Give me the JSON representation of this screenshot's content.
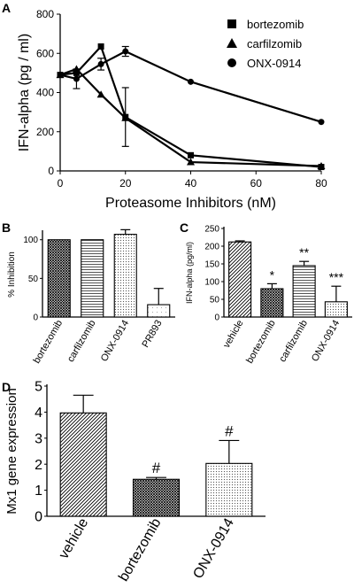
{
  "chart_data": [
    {
      "panel": "A",
      "type": "line",
      "xlabel": "Proteasome Inhibitors (nM)",
      "ylabel": "IFN-alpha (pg / ml)",
      "xlim": [
        0,
        80
      ],
      "ylim": [
        0,
        800
      ],
      "xticks": [
        "0",
        "20",
        "40",
        "60",
        "80"
      ],
      "yticks": [
        "0",
        "200",
        "400",
        "600",
        "800"
      ],
      "legend_position": "top-right",
      "series": [
        {
          "name": "bortezomib",
          "marker": "square",
          "x": [
            0,
            5,
            12.5,
            20,
            40,
            80
          ],
          "y": [
            490,
            500,
            635,
            275,
            80,
            20
          ],
          "err": [
            null,
            null,
            null,
            150,
            null,
            null
          ]
        },
        {
          "name": "carfilzomib",
          "marker": "triangle",
          "x": [
            0,
            5,
            12.5,
            20,
            40,
            80
          ],
          "y": [
            490,
            520,
            390,
            270,
            45,
            25
          ],
          "err": [
            null,
            null,
            null,
            null,
            null,
            null
          ]
        },
        {
          "name": "ONX-0914",
          "marker": "circle",
          "x": [
            0,
            5,
            12.5,
            20,
            40,
            80
          ],
          "y": [
            490,
            470,
            545,
            610,
            455,
            250
          ],
          "err": [
            null,
            50,
            30,
            25,
            null,
            null
          ]
        }
      ]
    },
    {
      "panel": "B",
      "type": "bar",
      "ylabel": "% Inhibition",
      "ylim": [
        0,
        110
      ],
      "yticks": [
        "0",
        "50",
        "100"
      ],
      "categories": [
        "bortezomib",
        "carfilzomib",
        "ONX-0914",
        "PR893"
      ],
      "values": [
        100,
        100,
        107,
        16
      ],
      "errors": [
        0,
        0,
        6,
        21
      ],
      "fills": [
        "crosshatch",
        "hlines",
        "dots",
        "sparse"
      ]
    },
    {
      "panel": "C",
      "type": "bar",
      "ylabel": "IFN-alpha (pg/ml)",
      "ylim": [
        0,
        250
      ],
      "yticks": [
        "0",
        "50",
        "100",
        "150",
        "200",
        "250"
      ],
      "categories": [
        "vehicle",
        "bortezomib",
        "carfilzomib",
        "ONX-0914"
      ],
      "values": [
        212,
        80,
        145,
        43
      ],
      "errors": [
        3,
        14,
        12,
        44
      ],
      "annotations": [
        "",
        "*",
        "**",
        "***"
      ],
      "fills": [
        "diag",
        "crosshatch",
        "hlines",
        "dots"
      ]
    },
    {
      "panel": "D",
      "type": "bar",
      "ylabel": "Mx1 gene expression",
      "ylim": [
        0,
        5
      ],
      "yticks": [
        "0",
        "1",
        "2",
        "3",
        "4",
        "5"
      ],
      "categories": [
        "vehicle",
        "bortezomib",
        "ONX-0914"
      ],
      "values": [
        3.97,
        1.42,
        2.03
      ],
      "errors": [
        0.68,
        0.07,
        0.88
      ],
      "annotations": [
        "",
        "#",
        "#"
      ],
      "fills": [
        "diag",
        "crosshatch",
        "dots"
      ]
    }
  ]
}
